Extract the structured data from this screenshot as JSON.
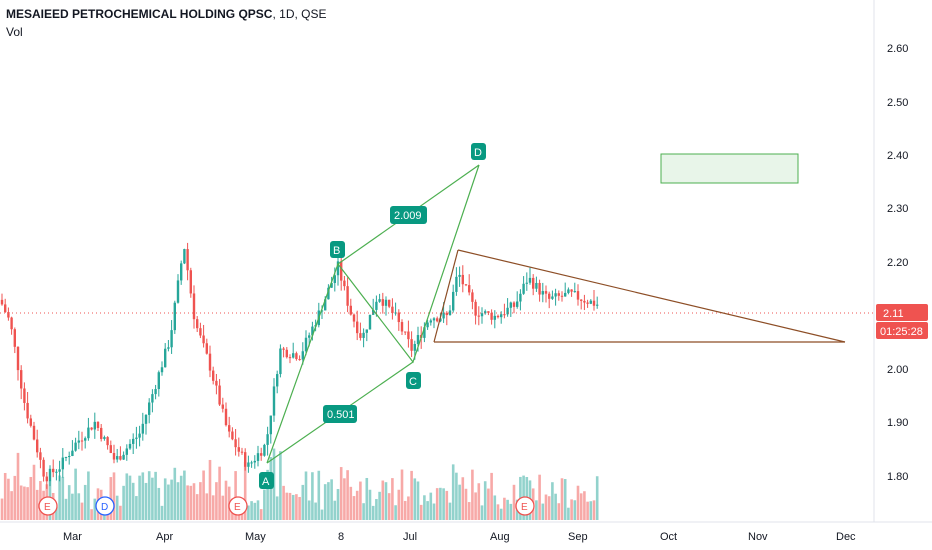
{
  "header": {
    "symbol": "MESAIEED PETROCHEMICAL HOLDING QPSC",
    "interval": "1D",
    "exchange": "QSE",
    "volume_label": "Vol"
  },
  "price_axis": {
    "ticks": [
      "2.60",
      "2.50",
      "2.40",
      "2.30",
      "2.20",
      "2.10",
      "2.00",
      "1.90",
      "1.80"
    ],
    "last_price": "2.11",
    "countdown": "01:25:28"
  },
  "time_axis": {
    "ticks": [
      "Mar",
      "Apr",
      "May",
      "8",
      "Jul",
      "Aug",
      "Sep",
      "Oct",
      "Nov",
      "Dec"
    ]
  },
  "pattern": {
    "points": [
      {
        "label": "A",
        "price": 1.83
      },
      {
        "label": "B",
        "price": 2.19
      },
      {
        "label": "C",
        "price": 2.015
      },
      {
        "label": "D",
        "price": 2.375
      }
    ],
    "ratios": [
      "0.501",
      "2.009"
    ]
  },
  "event_markers": [
    "E",
    "D",
    "E",
    "E"
  ],
  "colors": {
    "up": "#26a69a",
    "down": "#ef5350",
    "pattern": "#089981",
    "triangle": "#8d4e26",
    "price_line": "#ef5350"
  },
  "chart_data": {
    "type": "candlestick",
    "title": "MESAIEED PETROCHEMICAL HOLDING QPSC, 1D, QSE",
    "ylim": [
      1.72,
      2.66
    ],
    "last_price": 2.11,
    "series": [
      {
        "name": "price",
        "description": "daily OHLC, Feb–Sep, range approx 1.78–2.30"
      },
      {
        "name": "Vol",
        "description": "daily volume histogram"
      }
    ]
  }
}
